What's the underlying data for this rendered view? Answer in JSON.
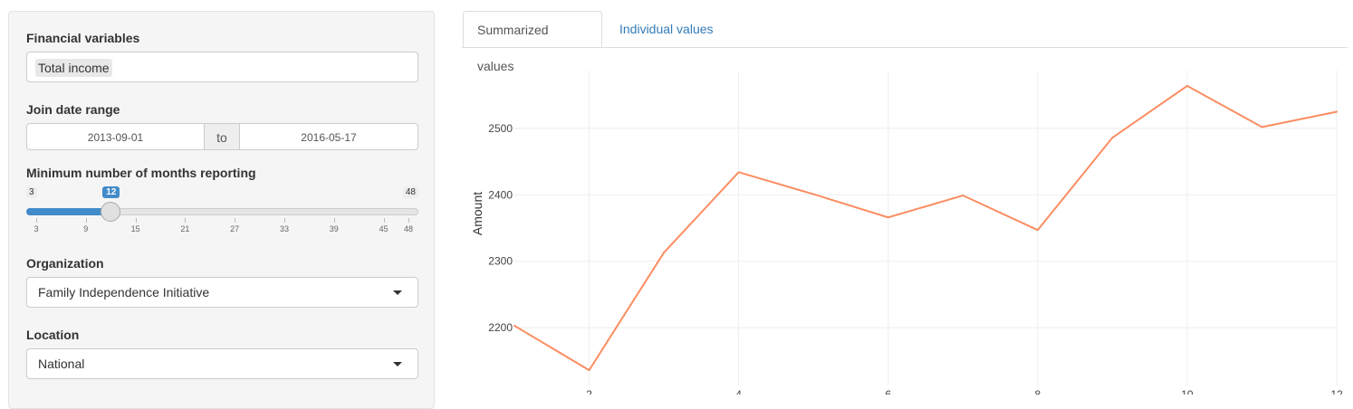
{
  "sidebar": {
    "financial": {
      "label": "Financial variables",
      "selected": "Total income"
    },
    "date_range": {
      "label": "Join date range",
      "start": "2013-09-01",
      "separator": "to",
      "end": "2016-05-17"
    },
    "months": {
      "label": "Minimum number of months reporting",
      "min": 3,
      "max": 48,
      "value": 12,
      "min_label": "3",
      "max_label": "48",
      "value_label": "12",
      "ticks": [
        "3",
        "9",
        "15",
        "21",
        "27",
        "33",
        "39",
        "45",
        "48"
      ],
      "accent": "#428bca"
    },
    "organization": {
      "label": "Organization",
      "selected": "Family Independence Initiative"
    },
    "location": {
      "label": "Location",
      "selected": "National"
    }
  },
  "tabs": [
    {
      "label": "Summarized values",
      "active": true
    },
    {
      "label": "Individual values",
      "active": false
    }
  ],
  "chart_data": {
    "type": "line",
    "xlabel": "",
    "ylabel": "Amount",
    "x": [
      1,
      2,
      3,
      4,
      5,
      6,
      7,
      8,
      9,
      10,
      11,
      12
    ],
    "series": [
      {
        "values": [
          2203,
          2136,
          2313,
          2434,
          2401,
          2366,
          2399,
          2347,
          2486,
          2564,
          2502,
          2525
        ],
        "color": "#fc8d62"
      }
    ],
    "x_ticks": [
      2,
      4,
      6,
      8,
      10,
      12
    ],
    "y_ticks": [
      2200,
      2300,
      2400,
      2500
    ],
    "xlim": [
      1,
      12
    ],
    "ylim": [
      2113,
      2587
    ],
    "grid": true
  }
}
